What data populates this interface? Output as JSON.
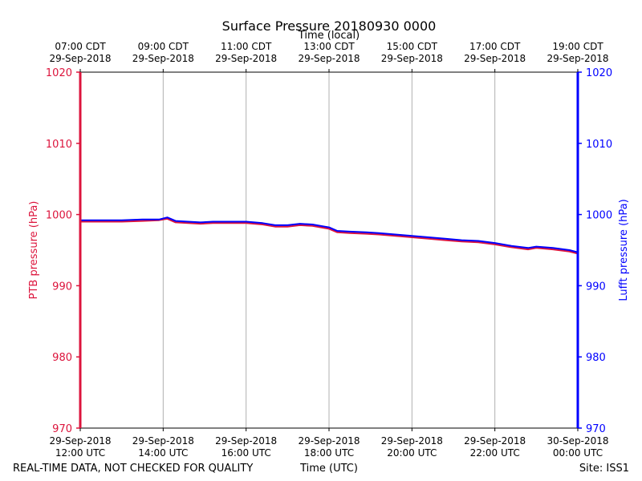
{
  "chart_data": {
    "type": "line",
    "title": "Surface Pressure 20180930 0000",
    "top_axis_label": "Time (local)",
    "xlabel": "Time (UTC)",
    "ylabel_left": "PTB pressure (hPa)",
    "ylabel_right": "Lufft pressure (hPa)",
    "footer_left": "REAL-TIME DATA, NOT CHECKED FOR QUALITY",
    "footer_right": "Site: ISS1",
    "x_range_hours": [
      12,
      24
    ],
    "ylim": [
      970,
      1020
    ],
    "yticks": [
      970,
      980,
      990,
      1000,
      1010,
      1020
    ],
    "grid_x": true,
    "bottom_ticks": [
      {
        "hour": 12,
        "date": "29-Sep-2018",
        "time": "12:00 UTC"
      },
      {
        "hour": 14,
        "date": "29-Sep-2018",
        "time": "14:00 UTC"
      },
      {
        "hour": 16,
        "date": "29-Sep-2018",
        "time": "16:00 UTC"
      },
      {
        "hour": 18,
        "date": "29-Sep-2018",
        "time": "18:00 UTC"
      },
      {
        "hour": 20,
        "date": "29-Sep-2018",
        "time": "20:00 UTC"
      },
      {
        "hour": 22,
        "date": "29-Sep-2018",
        "time": "22:00 UTC"
      },
      {
        "hour": 24,
        "date": "30-Sep-2018",
        "time": "00:00 UTC"
      }
    ],
    "top_ticks": [
      {
        "hour": 12,
        "time": "07:00 CDT",
        "date": "29-Sep-2018"
      },
      {
        "hour": 14,
        "time": "09:00 CDT",
        "date": "29-Sep-2018"
      },
      {
        "hour": 16,
        "time": "11:00 CDT",
        "date": "29-Sep-2018"
      },
      {
        "hour": 18,
        "time": "13:00 CDT",
        "date": "29-Sep-2018"
      },
      {
        "hour": 20,
        "time": "15:00 CDT",
        "date": "29-Sep-2018"
      },
      {
        "hour": 22,
        "time": "17:00 CDT",
        "date": "29-Sep-2018"
      },
      {
        "hour": 24,
        "time": "19:00 CDT",
        "date": "29-Sep-2018"
      }
    ],
    "colors": {
      "ptb": "#dc143c",
      "lufft": "#0000ff",
      "grid": "#b0b0b0",
      "axis": "#000000"
    },
    "series": [
      {
        "name": "PTB pressure",
        "axis": "left",
        "color": "#dc143c",
        "x": [
          12.0,
          12.5,
          13.0,
          13.5,
          13.9,
          14.1,
          14.3,
          14.6,
          14.9,
          15.2,
          15.5,
          15.8,
          16.0,
          16.4,
          16.7,
          17.0,
          17.3,
          17.6,
          17.9,
          18.0,
          18.2,
          18.5,
          18.9,
          19.2,
          19.6,
          20.0,
          20.4,
          20.8,
          21.2,
          21.6,
          22.0,
          22.4,
          22.8,
          23.0,
          23.4,
          23.8,
          24.0
        ],
        "y": [
          999.0,
          999.0,
          999.0,
          999.1,
          999.2,
          999.4,
          998.9,
          998.8,
          998.7,
          998.8,
          998.8,
          998.8,
          998.8,
          998.6,
          998.3,
          998.3,
          998.5,
          998.4,
          998.1,
          998.0,
          997.5,
          997.4,
          997.3,
          997.2,
          997.0,
          996.8,
          996.6,
          996.4,
          996.2,
          996.1,
          995.8,
          995.4,
          995.1,
          995.3,
          995.1,
          994.8,
          994.5
        ]
      },
      {
        "name": "Lufft pressure",
        "axis": "right",
        "color": "#0000ff",
        "x": [
          12.0,
          12.5,
          13.0,
          13.5,
          13.9,
          14.1,
          14.3,
          14.6,
          14.9,
          15.2,
          15.5,
          15.8,
          16.0,
          16.4,
          16.7,
          17.0,
          17.3,
          17.6,
          17.9,
          18.0,
          18.2,
          18.5,
          18.9,
          19.2,
          19.6,
          20.0,
          20.4,
          20.8,
          21.2,
          21.6,
          22.0,
          22.4,
          22.8,
          23.0,
          23.4,
          23.8,
          24.0
        ],
        "y": [
          999.2,
          999.2,
          999.2,
          999.3,
          999.3,
          999.6,
          999.1,
          999.0,
          998.9,
          999.0,
          999.0,
          999.0,
          999.0,
          998.8,
          998.5,
          998.5,
          998.7,
          998.6,
          998.3,
          998.2,
          997.7,
          997.6,
          997.5,
          997.4,
          997.2,
          997.0,
          996.8,
          996.6,
          996.4,
          996.3,
          996.0,
          995.6,
          995.3,
          995.5,
          995.3,
          995.0,
          994.7
        ]
      }
    ]
  }
}
